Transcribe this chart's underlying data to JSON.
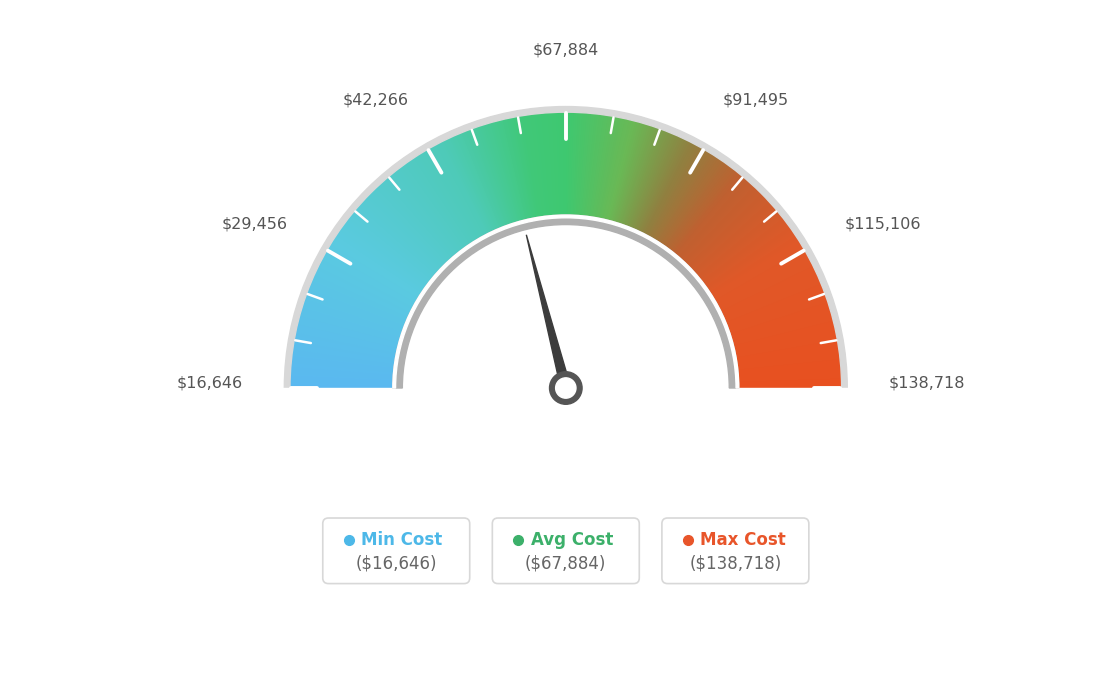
{
  "min_val": 16646,
  "max_val": 138718,
  "avg_val": 67884,
  "tick_labels": [
    "$16,646",
    "$29,456",
    "$42,266",
    "$67,884",
    "$91,495",
    "$115,106",
    "$138,718"
  ],
  "legend_items": [
    {
      "label": "Min Cost",
      "value": "($16,646)",
      "color": "#4db8e8"
    },
    {
      "label": "Avg Cost",
      "value": "($67,884)",
      "color": "#3cb06a"
    },
    {
      "label": "Max Cost",
      "value": "($138,718)",
      "color": "#e8552a"
    }
  ],
  "needle_value": 67884,
  "bg_color": "#ffffff",
  "colors_gradient": [
    [
      0.0,
      "#5ab8f0"
    ],
    [
      0.18,
      "#5acae0"
    ],
    [
      0.35,
      "#4ecab8"
    ],
    [
      0.45,
      "#40c878"
    ],
    [
      0.5,
      "#3ec870"
    ],
    [
      0.58,
      "#6ab855"
    ],
    [
      0.65,
      "#908040"
    ],
    [
      0.72,
      "#c06030"
    ],
    [
      0.82,
      "#e05828"
    ],
    [
      1.0,
      "#e85020"
    ]
  ]
}
